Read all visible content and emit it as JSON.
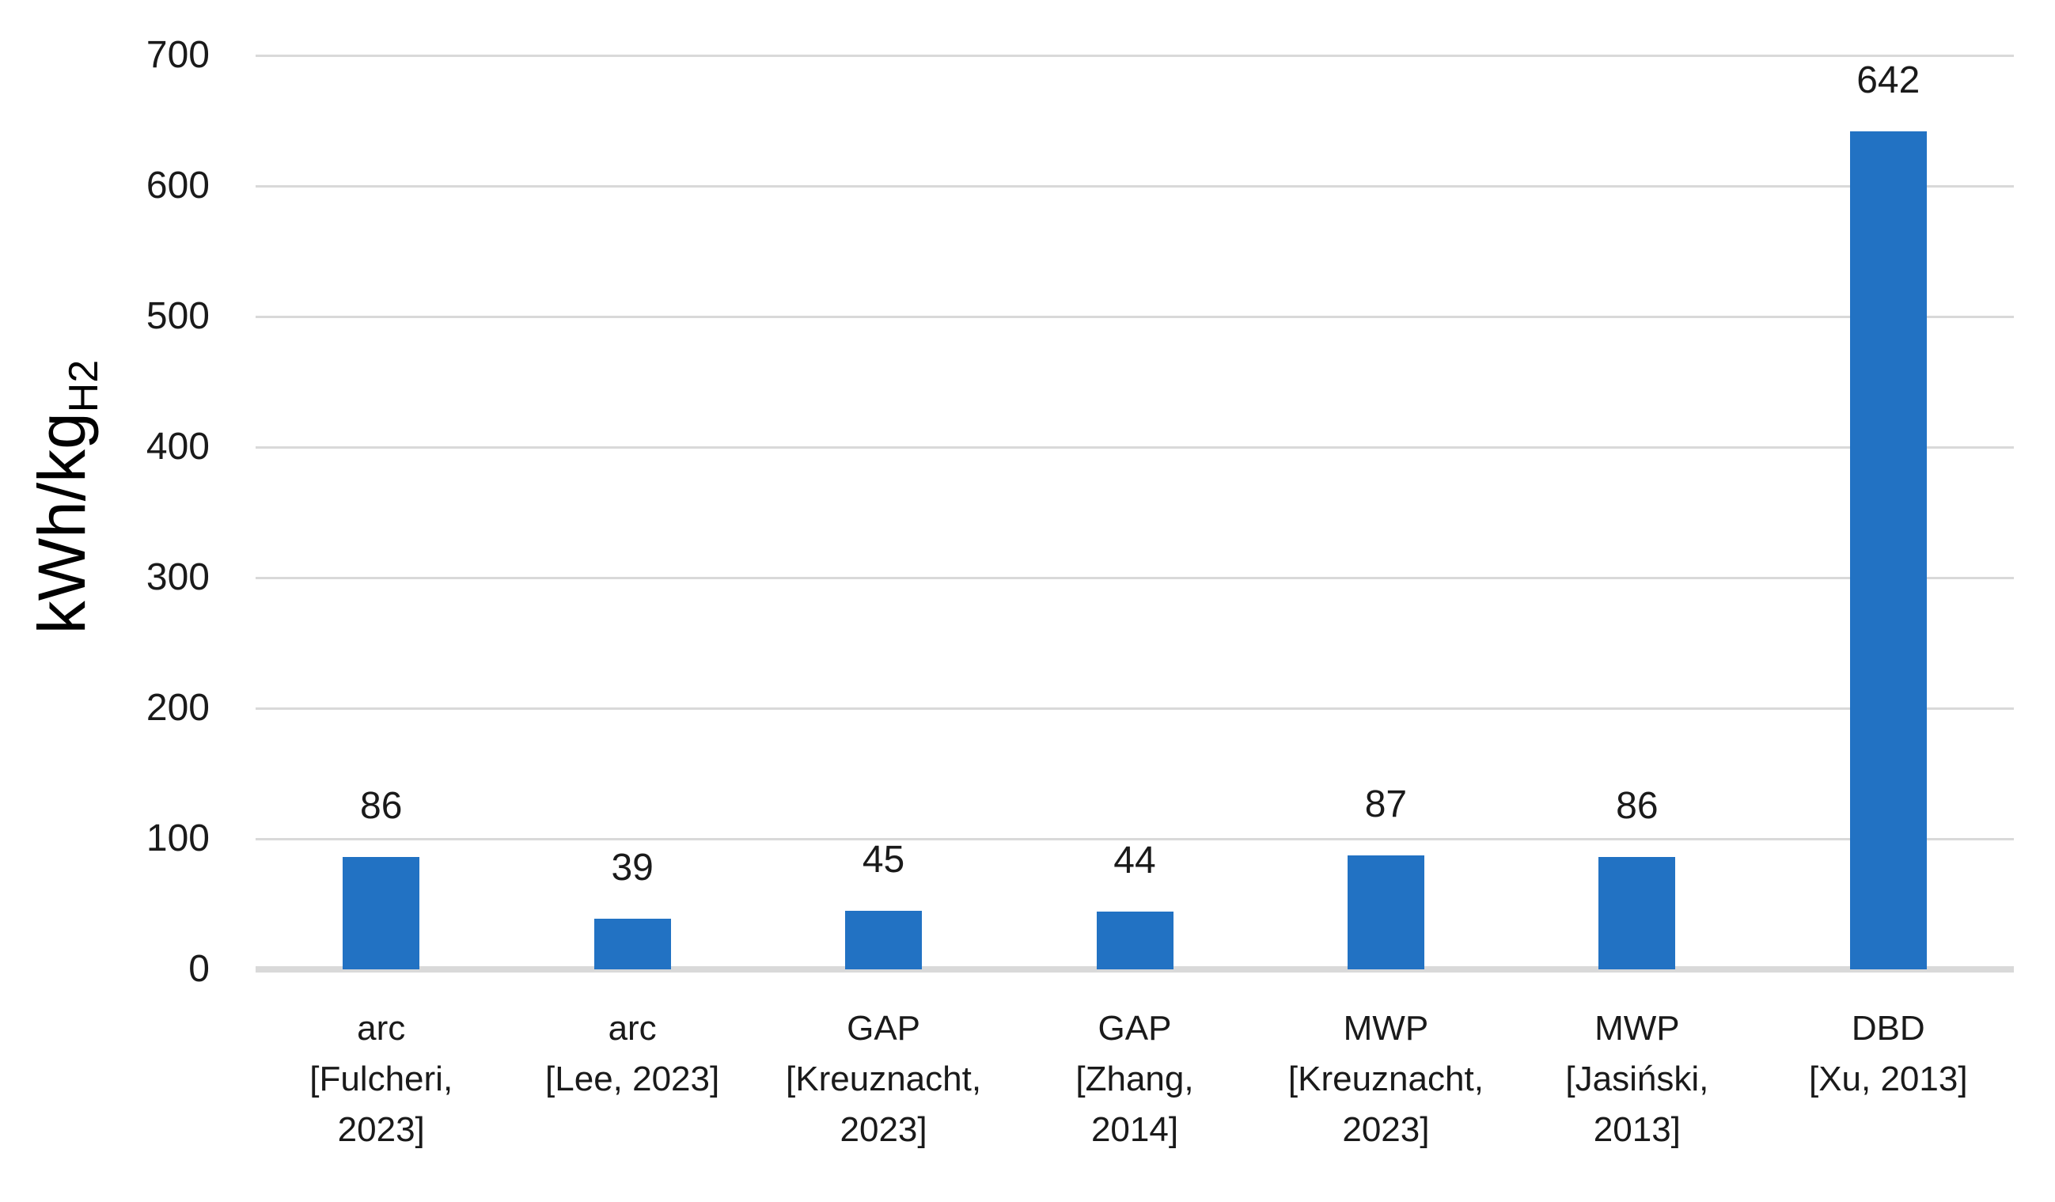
{
  "chart_data": {
    "type": "bar",
    "title": "",
    "xlabel": "",
    "ylabel": "kWh/kg",
    "ylabel_subscript": "H2",
    "ylim": [
      0,
      700
    ],
    "ytick_interval": 100,
    "yticks": [
      0,
      100,
      200,
      300,
      400,
      500,
      600,
      700
    ],
    "grid": true,
    "legend": false,
    "colors": {
      "bar": "#2272C3",
      "gridline": "#D9D9D9",
      "baseline": "#D9D9D9",
      "text": "#1A1A1A"
    },
    "categories": [
      {
        "label": "arc [Fulcheri, 2023]",
        "lines": [
          "arc",
          "[Fulcheri,",
          "2023]"
        ]
      },
      {
        "label": "arc [Lee, 2023]",
        "lines": [
          "arc",
          "[Lee, 2023]"
        ]
      },
      {
        "label": "GAP [Kreuznacht, 2023]",
        "lines": [
          "GAP",
          "[Kreuznacht,",
          "2023]"
        ]
      },
      {
        "label": "GAP [Zhang, 2014]",
        "lines": [
          "GAP",
          "[Zhang,",
          "2014]"
        ]
      },
      {
        "label": "MWP [Kreuznacht, 2023]",
        "lines": [
          "MWP",
          "[Kreuznacht,",
          "2023]"
        ]
      },
      {
        "label": "MWP [Jasiński, 2013]",
        "lines": [
          "MWP",
          "[Jasiński,",
          "2013]"
        ]
      },
      {
        "label": "DBD [Xu, 2013]",
        "lines": [
          "DBD",
          "[Xu, 2013]"
        ]
      }
    ],
    "values": [
      86,
      39,
      45,
      44,
      87,
      86,
      642
    ],
    "value_labels": [
      "86",
      "39",
      "45",
      "44",
      "87",
      "86",
      "642"
    ]
  }
}
